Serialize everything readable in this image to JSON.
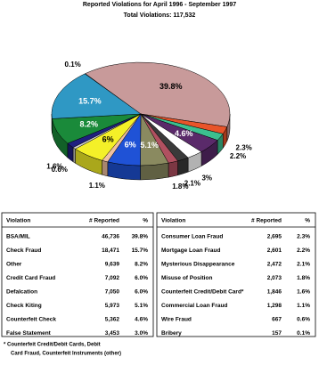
{
  "chart_data": {
    "type": "pie",
    "title": "Reported Violations for April 1996 - September 1997",
    "subtitle": "Total Violations:  117,532",
    "values": [
      0.1,
      39.8,
      2.3,
      2.2,
      4.6,
      3,
      2.1,
      1.8,
      5.1,
      6,
      1.1,
      6,
      0.6,
      1.6,
      8.2,
      15.7
    ],
    "value_labels": [
      "0.1%",
      "39.8%",
      "2.3%",
      "2.2%",
      "4.6%",
      "3%",
      "2.1%",
      "1.8%",
      "5.1%",
      "6%",
      "1.1%",
      "6%",
      "0.6%",
      "1.6%",
      "8.2%",
      "15.7%"
    ],
    "colors": [
      "#dddddd",
      "#c89a9a",
      "#e8542a",
      "#3cbf8f",
      "#5a2a6a",
      "#ffffff",
      "#3a3a3a",
      "#b05060",
      "#8a8a60",
      "#1f52d6",
      "#f0c0a0",
      "#f4f028",
      "#d0d0d0",
      "#202080",
      "#1a8a3a",
      "#2f98c4"
    ]
  },
  "tables": [
    {
      "headers": [
        "Violation",
        "# Reported",
        "%"
      ],
      "rows": [
        [
          "BSA/MIL",
          "46,736",
          "39.8%"
        ],
        [
          "Check Fraud",
          "18,471",
          "15.7%"
        ],
        [
          "Other",
          "9,639",
          "8.2%"
        ],
        [
          "Credit Card Fraud",
          "7,092",
          "6.0%"
        ],
        [
          "Defalcation",
          "7,050",
          "6.0%"
        ],
        [
          "Check Kiting",
          "5,973",
          "5.1%"
        ],
        [
          "Counterfeit Check",
          "5,362",
          "4.6%"
        ],
        [
          "False Statement",
          "3,453",
          "3.0%"
        ]
      ]
    },
    {
      "headers": [
        "Violation",
        "# Reported",
        "%"
      ],
      "rows": [
        [
          "Consumer Loan Fraud",
          "2,695",
          "2.3%"
        ],
        [
          "Mortgage Loan Fraud",
          "2,601",
          "2.2%"
        ],
        [
          "Mysterious Disappearance",
          "2,472",
          "2.1%"
        ],
        [
          "Misuse of Position",
          "2,073",
          "1.8%"
        ],
        [
          "Counterfeit Credit/Debit Card*",
          "1,846",
          "1.6%"
        ],
        [
          "Commercial Loan Fraud",
          "1,298",
          "1.1%"
        ],
        [
          "Wire Fraud",
          "667",
          "0.6%"
        ],
        [
          "Bribery",
          "157",
          "0.1%"
        ]
      ]
    }
  ],
  "footnote": [
    "*  Counterfeit Credit/Debit Cards, Debit",
    "Card Fraud, Counterfeit Instruments (other)"
  ]
}
